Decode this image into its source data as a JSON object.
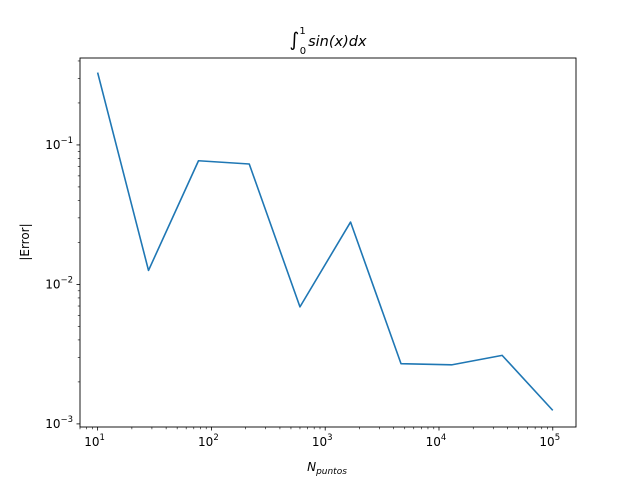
{
  "chart_data": {
    "type": "line",
    "title": "∫₀¹ sin(x) dx",
    "title_parts": {
      "integral": "∫",
      "lower": "0",
      "upper": "1",
      "integrand": "sin(x)dx"
    },
    "xlabel": {
      "base": "N",
      "subscript": "puntos"
    },
    "ylabel": "|Error|",
    "x_scale": "log",
    "y_scale": "log",
    "xlim": [
      7,
      160000
    ],
    "ylim": [
      0.00095,
      0.42
    ],
    "x_ticks": [
      {
        "value": 10,
        "base": "10",
        "exp": "1"
      },
      {
        "value": 100,
        "base": "10",
        "exp": "2"
      },
      {
        "value": 1000,
        "base": "10",
        "exp": "3"
      },
      {
        "value": 10000,
        "base": "10",
        "exp": "4"
      },
      {
        "value": 100000,
        "base": "10",
        "exp": "5"
      }
    ],
    "y_ticks": [
      {
        "value": 0.001,
        "base": "10",
        "exp": "−3"
      },
      {
        "value": 0.01,
        "base": "10",
        "exp": "−2"
      },
      {
        "value": 0.1,
        "base": "10",
        "exp": "−1"
      }
    ],
    "grid": false,
    "series": [
      {
        "color": "#1f77b4",
        "x": [
          10,
          28,
          77,
          215,
          600,
          1670,
          4640,
          12900,
          35900,
          100000
        ],
        "y": [
          0.33,
          0.0126,
          0.077,
          0.073,
          0.0069,
          0.028,
          0.0027,
          0.00265,
          0.0031,
          0.00125
        ]
      }
    ]
  }
}
